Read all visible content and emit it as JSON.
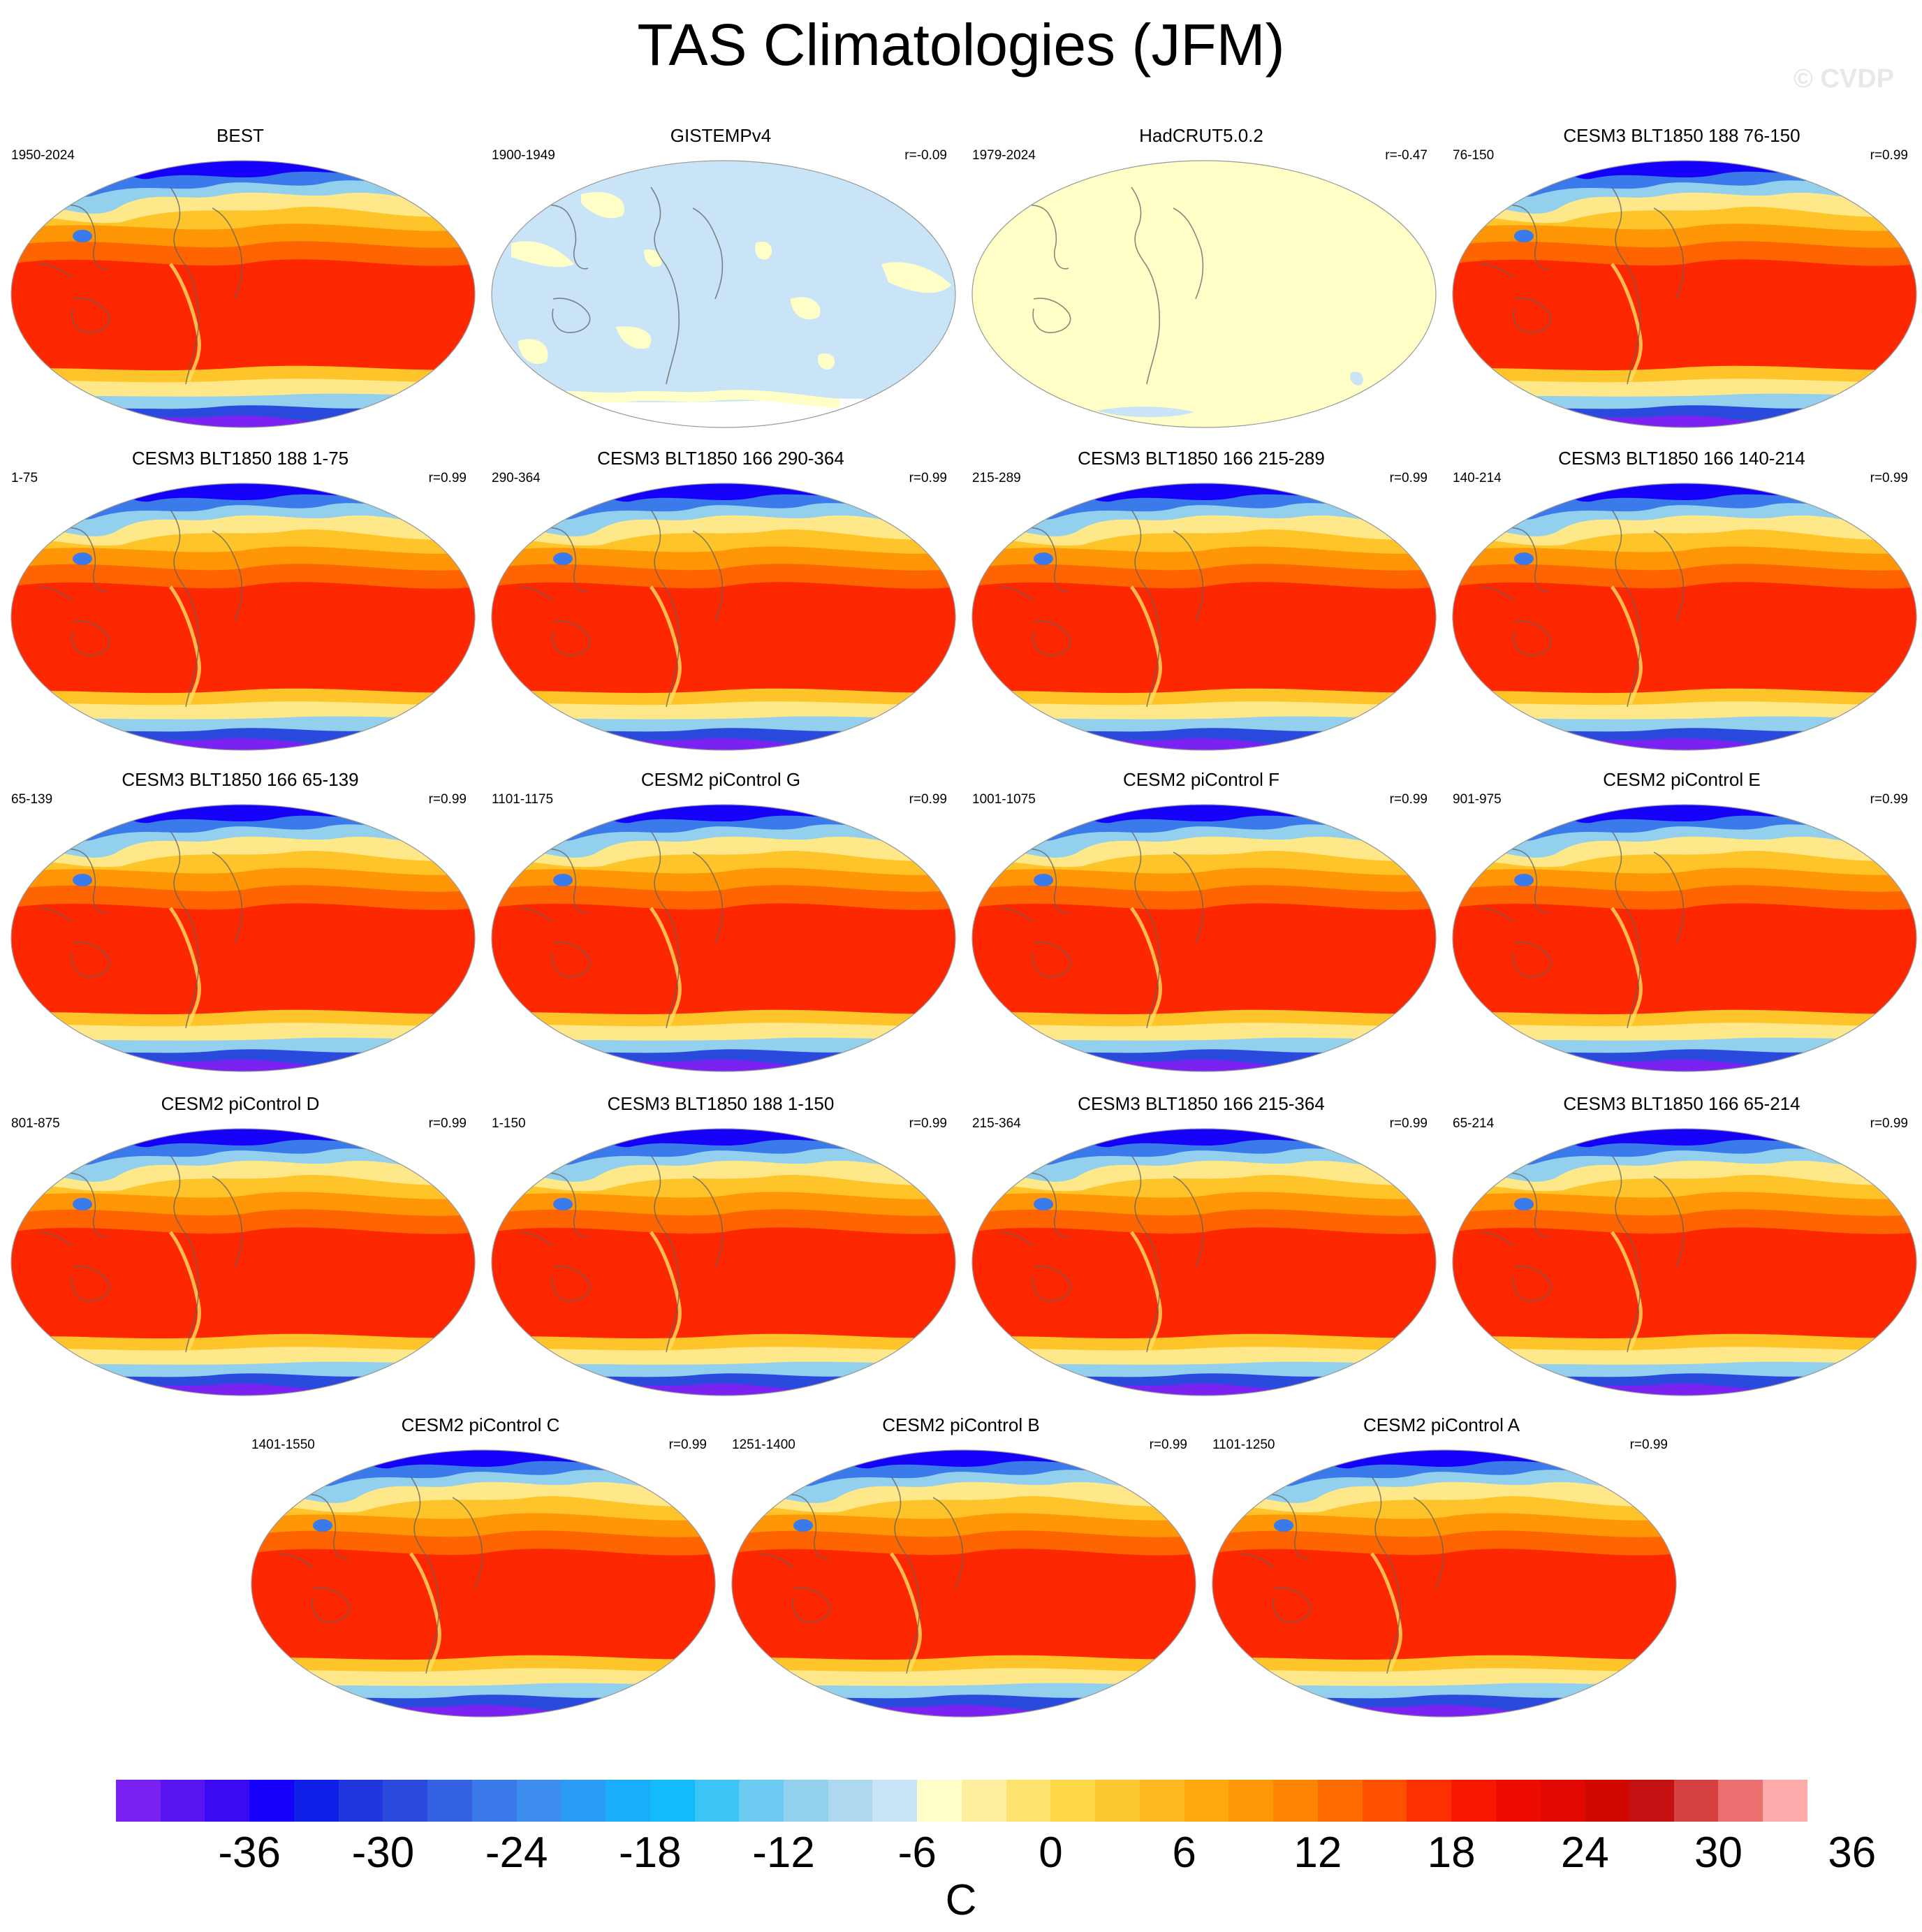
{
  "title": "TAS Climatologies (JFM)",
  "watermark": "© CVDP",
  "panels": [
    {
      "name": "BEST",
      "years": "1950-2024",
      "r": "",
      "style": "full"
    },
    {
      "name": "GISTEMPv4",
      "years": "1900-1949",
      "r": "r=-0.09",
      "style": "anom"
    },
    {
      "name": "HadCRUT5.0.2",
      "years": "1979-2024",
      "r": "r=-0.47",
      "style": "flat"
    },
    {
      "name": "CESM3 BLT1850 188 76-150",
      "years": "76-150",
      "r": "r=0.99",
      "style": "full"
    },
    {
      "name": "CESM3 BLT1850 188 1-75",
      "years": "1-75",
      "r": "r=0.99",
      "style": "full"
    },
    {
      "name": "CESM3 BLT1850 166 290-364",
      "years": "290-364",
      "r": "r=0.99",
      "style": "full"
    },
    {
      "name": "CESM3 BLT1850 166 215-289",
      "years": "215-289",
      "r": "r=0.99",
      "style": "full"
    },
    {
      "name": "CESM3 BLT1850 166 140-214",
      "years": "140-214",
      "r": "r=0.99",
      "style": "full"
    },
    {
      "name": "CESM3 BLT1850 166 65-139",
      "years": "65-139",
      "r": "r=0.99",
      "style": "full"
    },
    {
      "name": "CESM2 piControl G",
      "years": "1101-1175",
      "r": "r=0.99",
      "style": "full"
    },
    {
      "name": "CESM2 piControl F",
      "years": "1001-1075",
      "r": "r=0.99",
      "style": "full"
    },
    {
      "name": "CESM2 piControl E",
      "years": "901-975",
      "r": "r=0.99",
      "style": "full"
    },
    {
      "name": "CESM2 piControl D",
      "years": "801-875",
      "r": "r=0.99",
      "style": "full"
    },
    {
      "name": "CESM3 BLT1850 188 1-150",
      "years": "1-150",
      "r": "r=0.99",
      "style": "full"
    },
    {
      "name": "CESM3 BLT1850 166 215-364",
      "years": "215-364",
      "r": "r=0.99",
      "style": "full"
    },
    {
      "name": "CESM3 BLT1850 166 65-214",
      "years": "65-214",
      "r": "r=0.99",
      "style": "full"
    },
    {
      "name": "CESM2 piControl C",
      "years": "1401-1550",
      "r": "r=0.99",
      "style": "full"
    },
    {
      "name": "CESM2 piControl B",
      "years": "1251-1400",
      "r": "r=0.99",
      "style": "full"
    },
    {
      "name": "CESM2 piControl A",
      "years": "1101-1250",
      "r": "r=0.99",
      "style": "full"
    }
  ],
  "colorbar": {
    "colors": [
      "#7a22f2",
      "#5a16f2",
      "#3a0af2",
      "#1500fa",
      "#1020e8",
      "#2236e0",
      "#2a4ade",
      "#3562e2",
      "#3a7aea",
      "#3e8ef0",
      "#2a9cf6",
      "#1aaefa",
      "#12bcfb",
      "#3cc4f6",
      "#6ccaf0",
      "#92d0ee",
      "#aed8f0",
      "#c8e4f6",
      "#ffffc8",
      "#fff0a0",
      "#fee46e",
      "#fed848",
      "#fec830",
      "#feb820",
      "#fea80e",
      "#fe9806",
      "#fe8402",
      "#fe6c00",
      "#fe5000",
      "#fc3000",
      "#f81800",
      "#ee0c00",
      "#e00800",
      "#d00800",
      "#c41010",
      "#d64040",
      "#ec7070",
      "#fcaaaa"
    ],
    "labels": [
      "-36",
      "-30",
      "-24",
      "-18",
      "-12",
      "-6",
      "0",
      "6",
      "12",
      "18",
      "24",
      "30",
      "36"
    ],
    "units": "C"
  },
  "chart_data": {
    "type": "heatmap",
    "title": "TAS Climatologies (JFM)",
    "colorbar_levels": [
      -40,
      -38,
      -36,
      -34,
      -32,
      -30,
      -28,
      -26,
      -24,
      -22,
      -20,
      -18,
      -16,
      -14,
      -12,
      -10,
      -8,
      -6,
      -4,
      -2,
      0,
      2,
      4,
      6,
      8,
      10,
      12,
      14,
      16,
      18,
      20,
      22,
      24,
      26,
      28,
      30,
      32,
      34,
      36
    ],
    "colorbar_units": "C",
    "pattern_correlations": [
      {
        "panel": "GISTEMPv4",
        "r": -0.09
      },
      {
        "panel": "HadCRUT5.0.2",
        "r": -0.47
      },
      {
        "panel": "CESM3 BLT1850 188 76-150",
        "r": 0.99
      },
      {
        "panel": "CESM2 piControl A",
        "r": 0.99
      }
    ]
  }
}
